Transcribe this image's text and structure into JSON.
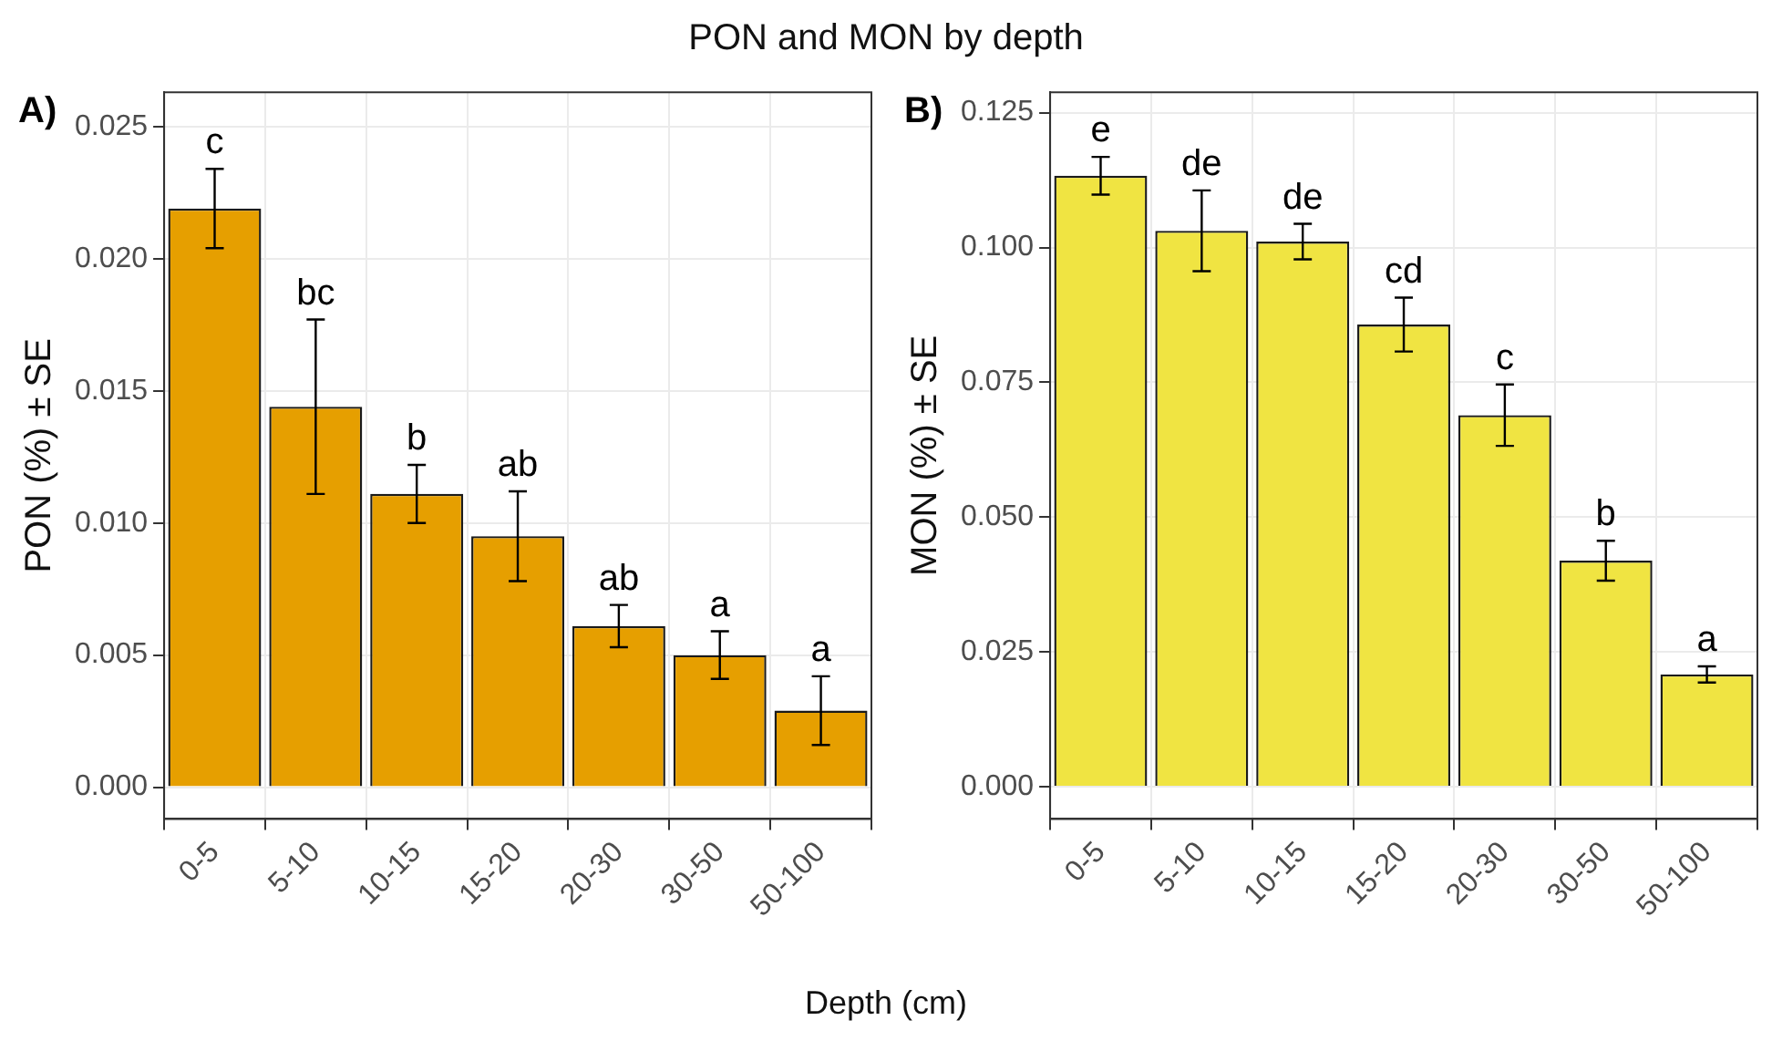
{
  "chart_data": [
    {
      "type": "bar",
      "title": "PON and MON by depth",
      "xlabel": "Depth (cm)",
      "ylabel": "PON (%) ± SE",
      "annotations": [
        "A)",
        {
          "text": "c",
          "x": "0-5",
          "y": 0.0234
        },
        {
          "text": "bc",
          "x": "5-10",
          "y": 0.0177
        },
        {
          "text": "b",
          "x": "10-15",
          "y": 0.0122
        },
        {
          "text": "ab",
          "x": "15-20",
          "y": 0.0112
        },
        {
          "text": "ab",
          "x": "20-30",
          "y": 0.0069
        },
        {
          "text": "a",
          "x": "30-50",
          "y": 0.0059
        },
        {
          "text": "a",
          "x": "50-100",
          "y": 0.0042
        }
      ],
      "categories": [
        "0-5",
        "5-10",
        "10-15",
        "15-20",
        "20-30",
        "30-50",
        "50-100"
      ],
      "values": [
        0.0219,
        0.0144,
        0.0111,
        0.0095,
        0.0061,
        0.005,
        0.0029
      ],
      "errors": [
        0.0015,
        0.0033,
        0.0011,
        0.0017,
        0.0008,
        0.0009,
        0.0013
      ],
      "color": "#e69f00",
      "ylim": [
        -0.0012,
        0.0263
      ],
      "yticks": [
        {
          "value": 0,
          "label": "0.000"
        },
        {
          "value": 0.005,
          "label": "0.005"
        },
        {
          "value": 0.01,
          "label": "0.010"
        },
        {
          "value": 0.015,
          "label": "0.015"
        },
        {
          "value": 0.02,
          "label": "0.020"
        },
        {
          "value": 0.025,
          "label": "0.025"
        }
      ],
      "grid": true
    },
    {
      "type": "bar",
      "ylabel": "MON (%) ± SE",
      "annotations": [
        "B)",
        {
          "text": "e",
          "x": "0-5",
          "y": 0.1168
        },
        {
          "text": "de",
          "x": "5-10",
          "y": 0.1106
        },
        {
          "text": "de",
          "x": "10-15",
          "y": 0.1044
        },
        {
          "text": "cd",
          "x": "15-20",
          "y": 0.0907
        },
        {
          "text": "c",
          "x": "20-30",
          "y": 0.0746
        },
        {
          "text": "b",
          "x": "30-50",
          "y": 0.0456
        },
        {
          "text": "a",
          "x": "50-100",
          "y": 0.0223
        }
      ],
      "categories": [
        "0-5",
        "5-10",
        "10-15",
        "15-20",
        "20-30",
        "30-50",
        "50-100"
      ],
      "values": [
        0.1133,
        0.1031,
        0.1011,
        0.0857,
        0.0689,
        0.0419,
        0.0208
      ],
      "errors": [
        0.0035,
        0.0075,
        0.0033,
        0.005,
        0.0057,
        0.0037,
        0.0015
      ],
      "color": "#f0e442",
      "ylim": [
        -0.006,
        0.1288
      ],
      "yticks": [
        {
          "value": 0,
          "label": "0.000"
        },
        {
          "value": 0.025,
          "label": "0.025"
        },
        {
          "value": 0.05,
          "label": "0.050"
        },
        {
          "value": 0.075,
          "label": "0.075"
        },
        {
          "value": 0.1,
          "label": "0.100"
        },
        {
          "value": 0.125,
          "label": "0.125"
        }
      ],
      "grid": true
    }
  ]
}
